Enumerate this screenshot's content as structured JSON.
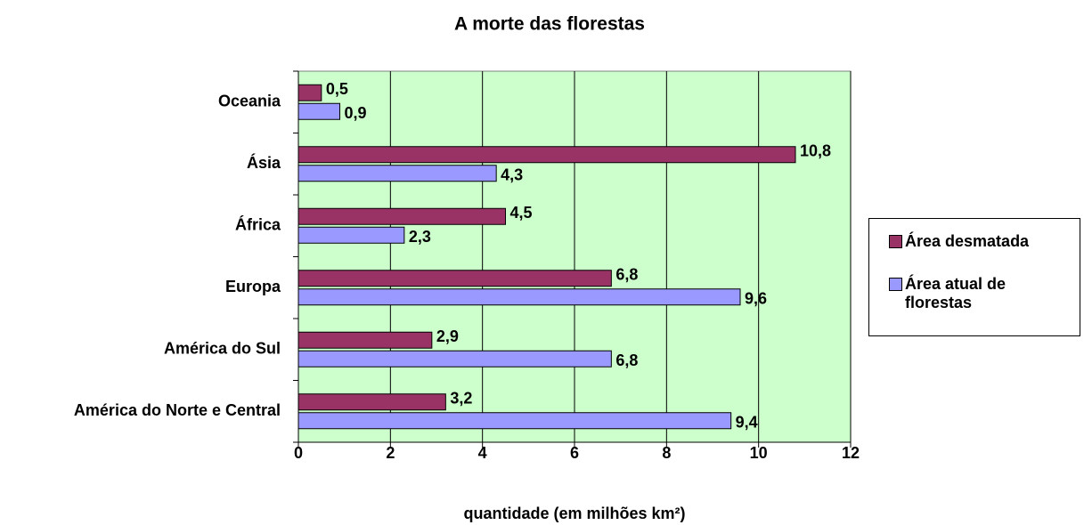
{
  "chart_data": {
    "type": "hbar",
    "title": "A morte das florestas",
    "x_label": "quantidade (em milhões km²)",
    "categories": [
      "Oceania",
      "Ásia",
      "África",
      "Europa",
      "América do Sul",
      "América do Norte e Central"
    ],
    "series": [
      {
        "name": "Área desmatada",
        "color": "#993366",
        "values": [
          0.5,
          10.8,
          4.5,
          6.8,
          2.9,
          3.2
        ],
        "value_labels": [
          "0,5",
          "10,8",
          "4,5",
          "6,8",
          "2,9",
          "3,2"
        ]
      },
      {
        "name": "Área atual de florestas",
        "color": "#9999ff",
        "values": [
          0.9,
          4.3,
          2.3,
          9.6,
          6.8,
          9.4
        ],
        "value_labels": [
          "0,9",
          "4,3",
          "2,3",
          "9,6",
          "6,8",
          "9,4"
        ]
      }
    ],
    "xlim": [
      0,
      12
    ],
    "xticks": [
      0,
      2,
      4,
      6,
      8,
      10,
      12
    ],
    "grid": true,
    "plot_background": "#ccffcc",
    "legend": "right"
  }
}
